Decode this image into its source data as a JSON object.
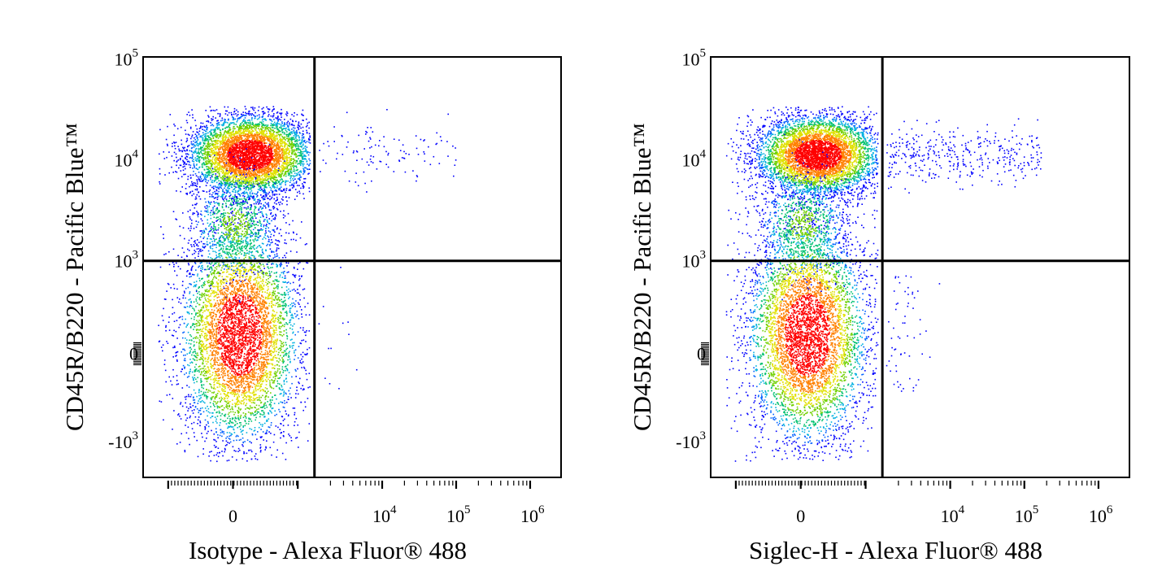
{
  "colors": {
    "density_scale": [
      "#0000ff",
      "#0060ff",
      "#00b0e0",
      "#00c070",
      "#70d000",
      "#e0e000",
      "#ff8000",
      "#ff0000"
    ],
    "gate_lines": "#000000"
  },
  "chart_data": [
    {
      "type": "scatter",
      "subtype": "flow-cytometry-density-dot-plot",
      "xlabel": "Isotype - Alexa Fluor® 488",
      "ylabel": "CD45R/B220 - Pacific Blue™",
      "x_scale": "biexponential",
      "y_scale": "biexponential",
      "x_ticks": [
        {
          "value": 0,
          "base": "0",
          "exp": ""
        },
        {
          "value": 10000,
          "base": "10",
          "exp": "4"
        },
        {
          "value": 100000,
          "base": "10",
          "exp": "5"
        },
        {
          "value": 1000000,
          "base": "10",
          "exp": "6"
        }
      ],
      "y_ticks": [
        {
          "value": 100000,
          "base": "10",
          "exp": "5"
        },
        {
          "value": 10000,
          "base": "10",
          "exp": "4"
        },
        {
          "value": 1000,
          "base": "10",
          "exp": "3"
        },
        {
          "value": 0,
          "base": "0",
          "exp": ""
        },
        {
          "value": -1000,
          "base": "-10",
          "exp": "3"
        }
      ],
      "quadrant_gate": {
        "x": 1800,
        "y": 1150
      },
      "populations": [
        {
          "name": "",
          "x_center": 300,
          "y_center": 10000,
          "density": "high"
        },
        {
          "name": "",
          "x_center": 200,
          "y_center": 0,
          "density": "high"
        },
        {
          "name": "",
          "x_center": 20000,
          "y_center": 10000,
          "density": "very low"
        }
      ]
    },
    {
      "type": "scatter",
      "subtype": "flow-cytometry-density-dot-plot",
      "xlabel": "Siglec-H - Alexa Fluor® 488",
      "ylabel": "CD45R/B220 - Pacific Blue™",
      "x_scale": "biexponential",
      "y_scale": "biexponential",
      "x_ticks": [
        {
          "value": 0,
          "base": "0",
          "exp": ""
        },
        {
          "value": 10000,
          "base": "10",
          "exp": "4"
        },
        {
          "value": 100000,
          "base": "10",
          "exp": "5"
        },
        {
          "value": 1000000,
          "base": "10",
          "exp": "6"
        }
      ],
      "y_ticks": [
        {
          "value": 100000,
          "base": "10",
          "exp": "5"
        },
        {
          "value": 10000,
          "base": "10",
          "exp": "4"
        },
        {
          "value": 1000,
          "base": "10",
          "exp": "3"
        },
        {
          "value": 0,
          "base": "0",
          "exp": ""
        },
        {
          "value": -1000,
          "base": "-10",
          "exp": "3"
        }
      ],
      "quadrant_gate": {
        "x": 1800,
        "y": 1150
      },
      "populations": [
        {
          "name": "",
          "x_center": 250,
          "y_center": 10000,
          "density": "high"
        },
        {
          "name": "",
          "x_center": 200,
          "y_center": 0,
          "density": "high"
        },
        {
          "name": "",
          "x_center": 30000,
          "y_center": 10000,
          "density": "low"
        }
      ]
    }
  ]
}
